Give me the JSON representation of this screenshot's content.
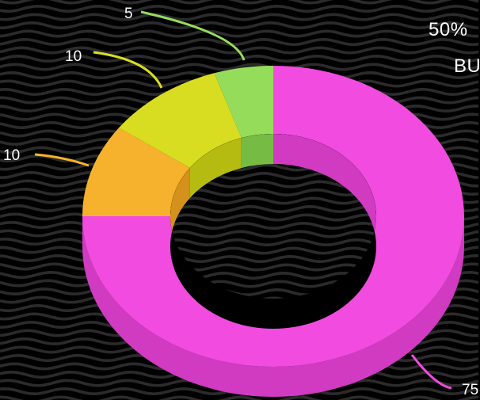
{
  "background_color": "#000000",
  "title_lines": [
    "50%",
    "BU"
  ],
  "chart_data": {
    "type": "pie",
    "variant": "3d-donut",
    "title": "50% BU",
    "start": "top",
    "direction": "clockwise",
    "slices": [
      {
        "value": 75,
        "label": "75",
        "color": "#f24bdf",
        "side_color": "#d03bc2"
      },
      {
        "value": 10,
        "label": "10",
        "color": "#f6b22c",
        "side_color": "#d4921c"
      },
      {
        "value": 10,
        "label": "10",
        "color": "#d9dd22",
        "side_color": "#b6bb12"
      },
      {
        "value": 5,
        "label": "5",
        "color": "#96dc5b",
        "side_color": "#76bc44"
      }
    ]
  }
}
